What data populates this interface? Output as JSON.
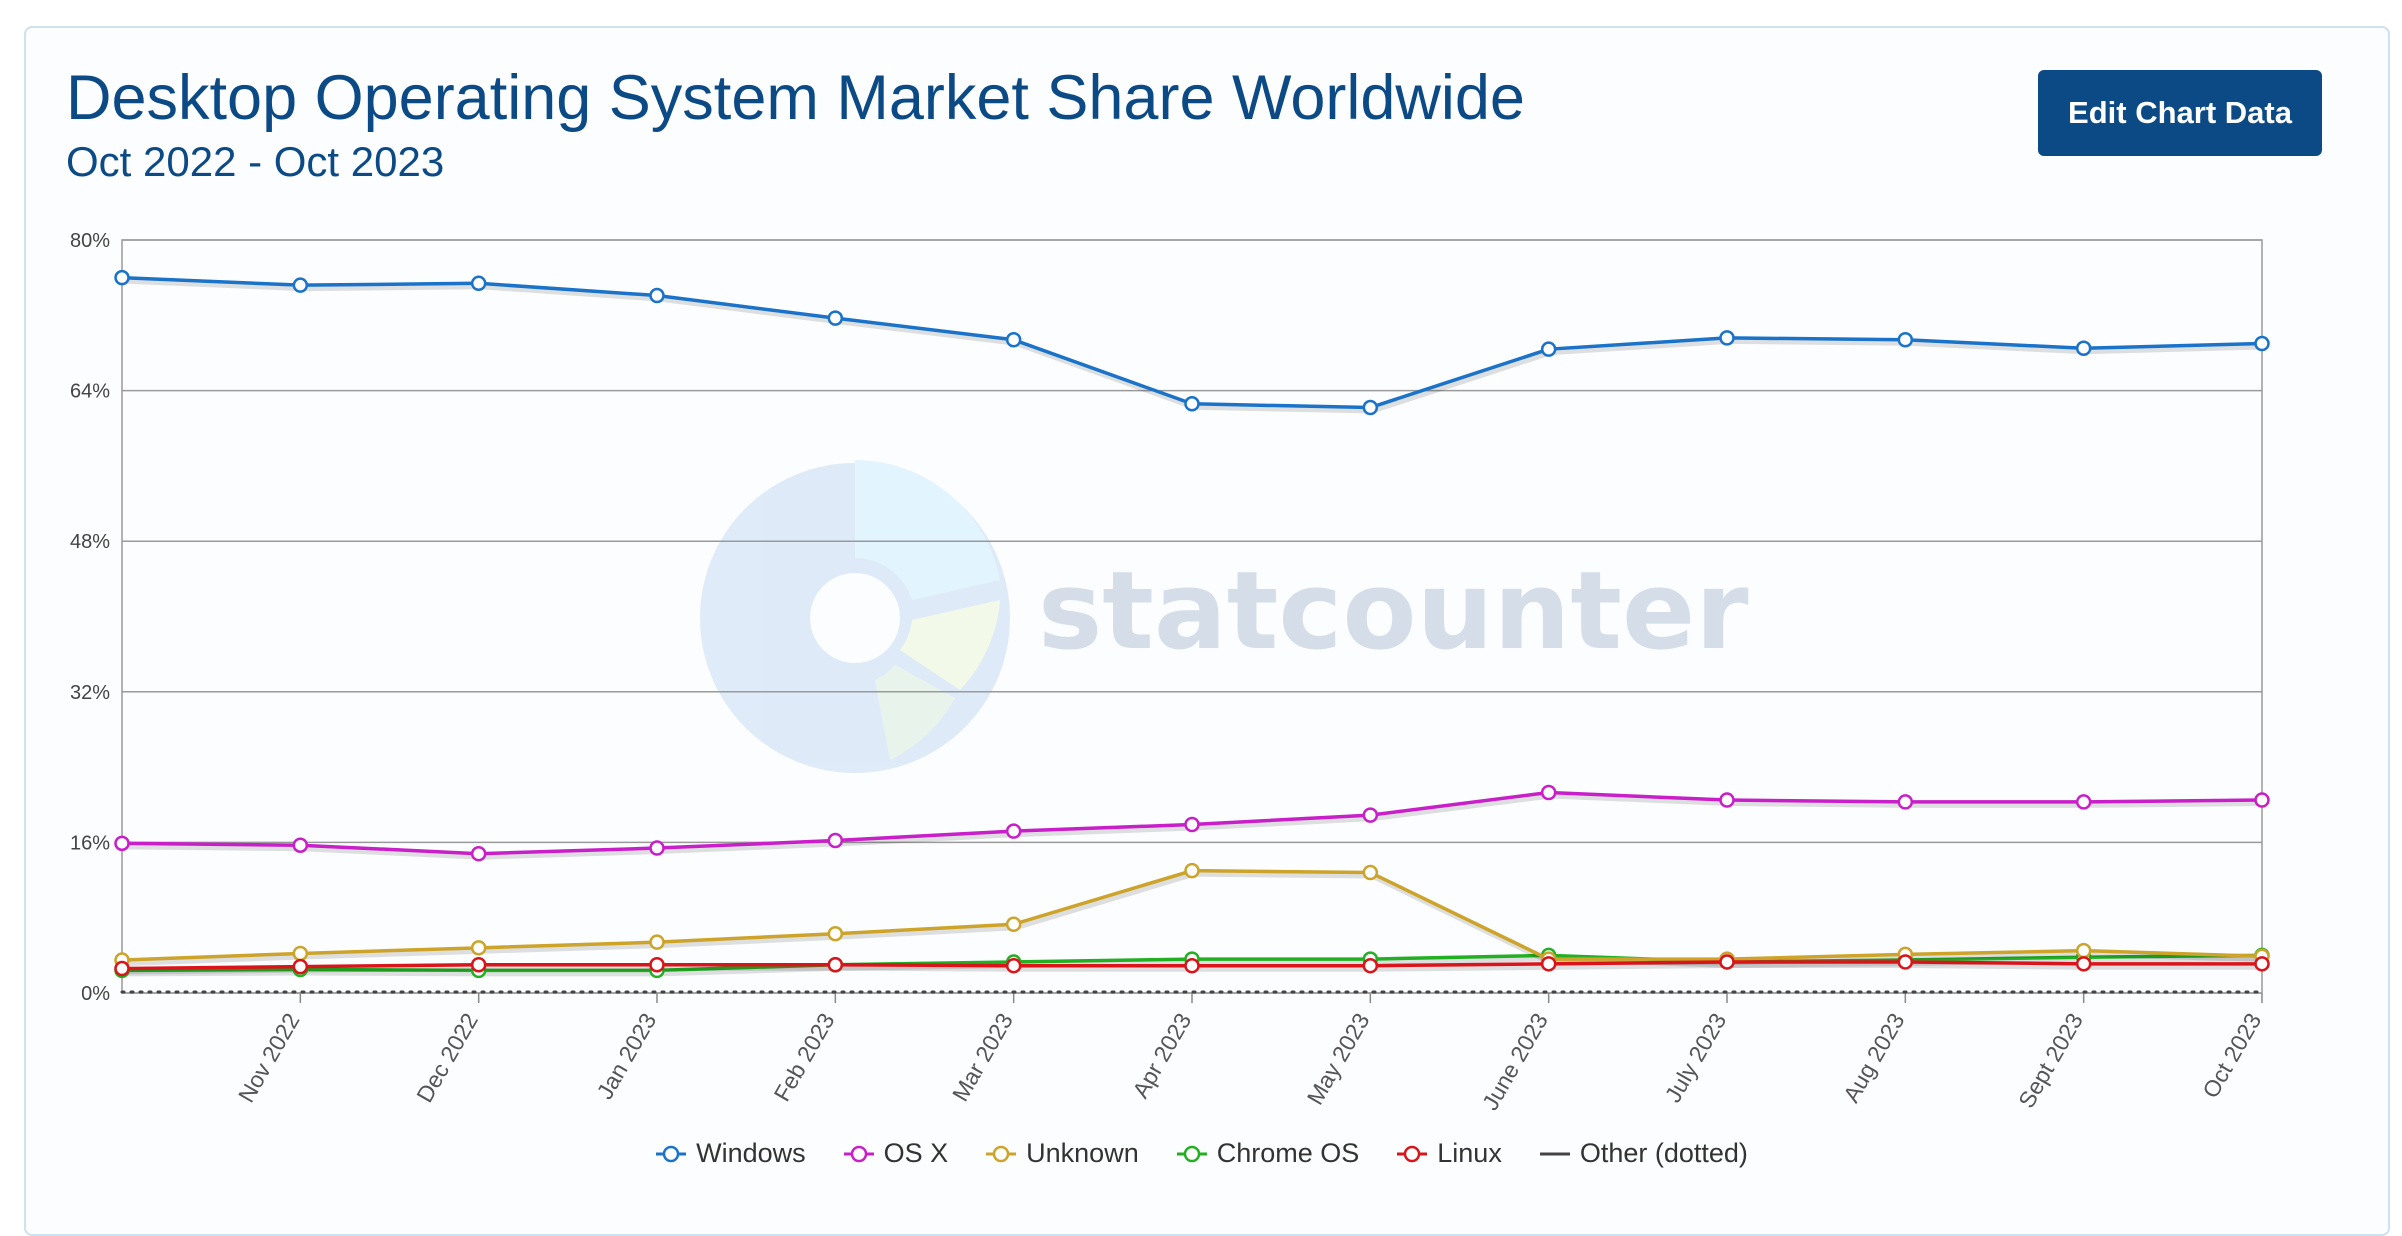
{
  "header": {
    "title": "Desktop Operating System Market Share Worldwide",
    "subtitle": "Oct 2022 - Oct 2023",
    "edit_button_label": "Edit Chart Data"
  },
  "watermark": {
    "text": "statcounter"
  },
  "chart_data": {
    "type": "line",
    "title": "Desktop Operating System Market Share Worldwide",
    "subtitle": "Oct 2022 - Oct 2023",
    "categories": [
      "Oct 2022",
      "Nov 2022",
      "Dec 2022",
      "Jan 2023",
      "Feb 2023",
      "Mar 2023",
      "Apr 2023",
      "May 2023",
      "June 2023",
      "July 2023",
      "Aug 2023",
      "Sept 2023",
      "Oct 2023"
    ],
    "x_tick_labels": [
      "Nov 2022",
      "Dec 2022",
      "Jan 2023",
      "Feb 2023",
      "Mar 2023",
      "Apr 2023",
      "May 2023",
      "June 2023",
      "July 2023",
      "Aug 2023",
      "Sept 2023",
      "Oct 2023"
    ],
    "ylim": [
      0,
      80
    ],
    "y_ticks": [
      0,
      16,
      32,
      48,
      64,
      80
    ],
    "y_tick_labels": [
      "0%",
      "16%",
      "32%",
      "48%",
      "64%",
      "80%"
    ],
    "y_unit": "%",
    "grid": true,
    "legend_position": "bottom-center",
    "series": [
      {
        "name": "Windows",
        "color": "#1a73c9",
        "values": [
          76.0,
          75.2,
          75.4,
          74.1,
          71.7,
          69.4,
          62.6,
          62.2,
          68.4,
          69.6,
          69.4,
          68.5,
          69.0
        ]
      },
      {
        "name": "OS X",
        "color": "#c81fc8",
        "values": [
          15.9,
          15.7,
          14.8,
          15.4,
          16.2,
          17.2,
          17.9,
          18.9,
          21.3,
          20.5,
          20.3,
          20.3,
          20.5
        ]
      },
      {
        "name": "Unknown",
        "color": "#cda429",
        "values": [
          3.5,
          4.2,
          4.8,
          5.4,
          6.3,
          7.3,
          13.0,
          12.8,
          3.6,
          3.6,
          4.1,
          4.5,
          3.9
        ]
      },
      {
        "name": "Chrome OS",
        "color": "#22b022",
        "values": [
          2.4,
          2.5,
          2.4,
          2.4,
          3.0,
          3.3,
          3.6,
          3.6,
          4.0,
          3.3,
          3.5,
          3.8,
          4.0
        ]
      },
      {
        "name": "Linux",
        "color": "#d9141b",
        "values": [
          2.6,
          2.8,
          3.0,
          3.0,
          3.0,
          2.9,
          2.9,
          2.9,
          3.1,
          3.3,
          3.3,
          3.1,
          3.1
        ]
      },
      {
        "name": "Other (dotted)",
        "color": "#444444",
        "values": [
          0.1,
          0.1,
          0.1,
          0.1,
          0.1,
          0.1,
          0.1,
          0.1,
          0.1,
          0.1,
          0.1,
          0.1,
          0.1
        ],
        "dotted": true
      }
    ]
  }
}
